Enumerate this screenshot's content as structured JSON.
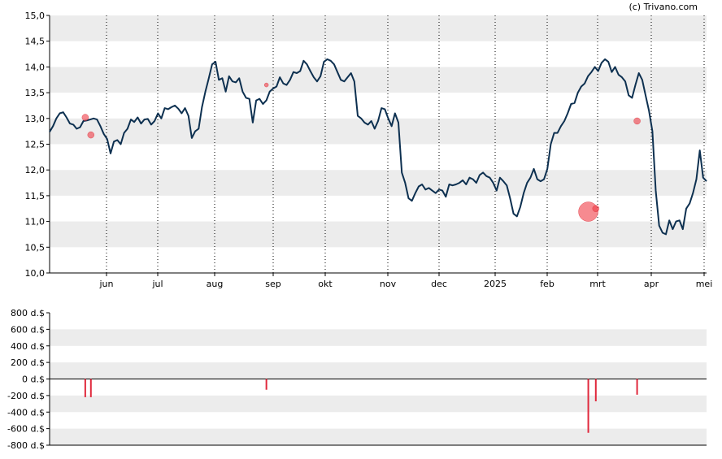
{
  "copyright": "(c) Trivano.com",
  "chart_data": [
    {
      "type": "line",
      "x_labels": [
        "jun",
        "jul",
        "aug",
        "sep",
        "okt",
        "nov",
        "dec",
        "2025",
        "feb",
        "mrt",
        "apr",
        "mei"
      ],
      "y_ticks": [
        "10,0",
        "10,5",
        "11,0",
        "11,5",
        "12,0",
        "12,5",
        "13,0",
        "13,5",
        "14,0",
        "14,5",
        "15,0"
      ],
      "ylim": [
        10.0,
        15.0
      ],
      "grid": "alternating horizontal bands, dotted vertical month lines",
      "series": [
        {
          "color": "#0d3050",
          "values": [
            12.74,
            12.85,
            13.0,
            13.1,
            13.12,
            13.02,
            12.9,
            12.88,
            12.8,
            12.83,
            12.95,
            12.96,
            12.98,
            13.0,
            12.98,
            12.85,
            12.7,
            12.6,
            12.32,
            12.55,
            12.58,
            12.5,
            12.72,
            12.8,
            12.98,
            12.93,
            13.02,
            12.9,
            12.98,
            12.99,
            12.88,
            12.95,
            13.1,
            13.0,
            13.2,
            13.18,
            13.22,
            13.25,
            13.19,
            13.1,
            13.2,
            13.05,
            12.62,
            12.75,
            12.8,
            13.22,
            13.52,
            13.78,
            14.05,
            14.1,
            13.75,
            13.78,
            13.52,
            13.82,
            13.72,
            13.7,
            13.78,
            13.52,
            13.4,
            13.38,
            12.92,
            13.35,
            13.38,
            13.28,
            13.35,
            13.52,
            13.58,
            13.62,
            13.8,
            13.68,
            13.65,
            13.75,
            13.9,
            13.88,
            13.92,
            14.12,
            14.05,
            13.92,
            13.8,
            13.72,
            13.82,
            14.1,
            14.15,
            14.12,
            14.05,
            13.9,
            13.75,
            13.72,
            13.8,
            13.88,
            13.72,
            13.05,
            13.0,
            12.92,
            12.88,
            12.95,
            12.8,
            12.95,
            13.2,
            13.18,
            13.0,
            12.85,
            13.1,
            12.92,
            11.95,
            11.75,
            11.45,
            11.4,
            11.55,
            11.68,
            11.72,
            11.62,
            11.65,
            11.6,
            11.55,
            11.62,
            11.6,
            11.48,
            11.72,
            11.7,
            11.72,
            11.75,
            11.8,
            11.72,
            11.85,
            11.82,
            11.75,
            11.9,
            11.95,
            11.88,
            11.85,
            11.75,
            11.6,
            11.85,
            11.78,
            11.7,
            11.45,
            11.15,
            11.1,
            11.28,
            11.55,
            11.75,
            11.85,
            12.02,
            11.82,
            11.78,
            11.82,
            12.02,
            12.5,
            12.72,
            12.72,
            12.85,
            12.95,
            13.1,
            13.28,
            13.3,
            13.5,
            13.62,
            13.68,
            13.82,
            13.9,
            14.0,
            13.92,
            14.08,
            14.15,
            14.1,
            13.9,
            14.0,
            13.85,
            13.8,
            13.72,
            13.45,
            13.4,
            13.65,
            13.88,
            13.75,
            13.45,
            13.15,
            12.75,
            11.6,
            10.92,
            10.78,
            10.75,
            11.02,
            10.85,
            11.0,
            11.02,
            10.85,
            11.25,
            11.35,
            11.55,
            11.82,
            12.38,
            11.85,
            11.78
          ]
        }
      ],
      "markers": [
        {
          "day": 38,
          "value": 13.02,
          "size": "small"
        },
        {
          "day": 44,
          "value": 12.68,
          "size": "small"
        },
        {
          "day": 231,
          "value": 13.65,
          "size": "tiny"
        },
        {
          "day": 574,
          "value": 11.19,
          "size": "large"
        },
        {
          "day": 582,
          "value": 11.25,
          "size": "small"
        },
        {
          "day": 626,
          "value": 12.95,
          "size": "small"
        }
      ]
    },
    {
      "type": "bar",
      "y_ticks": [
        "800 d.$",
        "600 d.$",
        "400 d.$",
        "200 d.$",
        "0 d.$",
        "-200 d.$",
        "-400 d.$",
        "-600 d.$",
        "-800 d.$"
      ],
      "ylim": [
        -800,
        800
      ],
      "grid": "alternating horizontal bands",
      "bars": [
        {
          "day": 38,
          "value": -220
        },
        {
          "day": 44,
          "value": -220
        },
        {
          "day": 231,
          "value": -130
        },
        {
          "day": 574,
          "value": -650
        },
        {
          "day": 582,
          "value": -270
        },
        {
          "day": 626,
          "value": -190
        }
      ],
      "color": "#e0283c"
    }
  ]
}
